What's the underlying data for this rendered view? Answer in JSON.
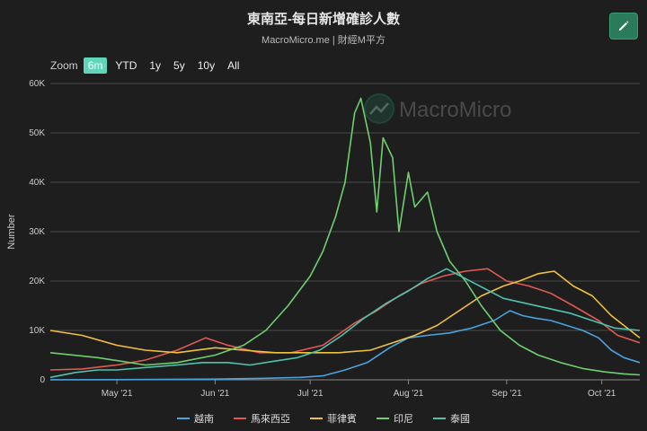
{
  "header": {
    "title": "東南亞-每日新增確診人數",
    "subtitle": "MacroMicro.me | 財經M平方",
    "watermark": "MacroMicro"
  },
  "zoom": {
    "label": "Zoom",
    "buttons": [
      "6m",
      "YTD",
      "1y",
      "5y",
      "10y",
      "All"
    ],
    "active": "6m"
  },
  "chart_data": {
    "type": "line",
    "ylabel": "Number",
    "ylim": [
      0,
      60000
    ],
    "yticks": [
      "0",
      "10K",
      "20K",
      "30K",
      "40K",
      "50K",
      "60K"
    ],
    "xlim": [
      "2021-04-10",
      "2021-10-13"
    ],
    "xticks": [
      {
        "label": "May '21",
        "date": "2021-05-01"
      },
      {
        "label": "Jun '21",
        "date": "2021-06-01"
      },
      {
        "label": "Jul '21",
        "date": "2021-07-01"
      },
      {
        "label": "Aug '21",
        "date": "2021-08-01"
      },
      {
        "label": "Sep '21",
        "date": "2021-09-01"
      },
      {
        "label": "Oct '21",
        "date": "2021-10-01"
      }
    ],
    "grid": true,
    "legend_position": "bottom",
    "series": [
      {
        "name": "越南",
        "color": "#4aa3df",
        "points": [
          [
            "2021-04-10",
            20
          ],
          [
            "2021-05-01",
            30
          ],
          [
            "2021-05-20",
            100
          ],
          [
            "2021-06-01",
            150
          ],
          [
            "2021-06-15",
            300
          ],
          [
            "2021-06-28",
            500
          ],
          [
            "2021-07-05",
            800
          ],
          [
            "2021-07-12",
            2000
          ],
          [
            "2021-07-19",
            3500
          ],
          [
            "2021-07-26",
            6500
          ],
          [
            "2021-08-01",
            8500
          ],
          [
            "2021-08-07",
            9000
          ],
          [
            "2021-08-14",
            9500
          ],
          [
            "2021-08-21",
            10500
          ],
          [
            "2021-08-28",
            12000
          ],
          [
            "2021-09-02",
            14000
          ],
          [
            "2021-09-06",
            13000
          ],
          [
            "2021-09-10",
            12500
          ],
          [
            "2021-09-15",
            12000
          ],
          [
            "2021-09-20",
            11000
          ],
          [
            "2021-09-25",
            10000
          ],
          [
            "2021-09-30",
            8500
          ],
          [
            "2021-10-04",
            6000
          ],
          [
            "2021-10-08",
            4500
          ],
          [
            "2021-10-13",
            3500
          ]
        ]
      },
      {
        "name": "馬來西亞",
        "color": "#e05a50",
        "points": [
          [
            "2021-04-10",
            2000
          ],
          [
            "2021-04-20",
            2200
          ],
          [
            "2021-05-01",
            3000
          ],
          [
            "2021-05-10",
            4000
          ],
          [
            "2021-05-20",
            6000
          ],
          [
            "2021-05-29",
            8500
          ],
          [
            "2021-06-05",
            7000
          ],
          [
            "2021-06-15",
            5500
          ],
          [
            "2021-06-25",
            5500
          ],
          [
            "2021-07-05",
            7000
          ],
          [
            "2021-07-15",
            11500
          ],
          [
            "2021-07-22",
            14000
          ],
          [
            "2021-07-29",
            17000
          ],
          [
            "2021-08-05",
            19500
          ],
          [
            "2021-08-12",
            21000
          ],
          [
            "2021-08-19",
            22000
          ],
          [
            "2021-08-26",
            22500
          ],
          [
            "2021-09-01",
            20000
          ],
          [
            "2021-09-08",
            19000
          ],
          [
            "2021-09-15",
            17500
          ],
          [
            "2021-09-22",
            15000
          ],
          [
            "2021-09-30",
            12000
          ],
          [
            "2021-10-06",
            9000
          ],
          [
            "2021-10-13",
            7500
          ]
        ]
      },
      {
        "name": "菲律賓",
        "color": "#f0c040",
        "points": [
          [
            "2021-04-10",
            10000
          ],
          [
            "2021-04-20",
            9000
          ],
          [
            "2021-05-01",
            7000
          ],
          [
            "2021-05-10",
            6000
          ],
          [
            "2021-05-20",
            5500
          ],
          [
            "2021-06-01",
            6500
          ],
          [
            "2021-06-10",
            6000
          ],
          [
            "2021-06-20",
            5500
          ],
          [
            "2021-07-01",
            5500
          ],
          [
            "2021-07-10",
            5500
          ],
          [
            "2021-07-20",
            6000
          ],
          [
            "2021-07-27",
            7500
          ],
          [
            "2021-08-03",
            9000
          ],
          [
            "2021-08-10",
            11000
          ],
          [
            "2021-08-17",
            14000
          ],
          [
            "2021-08-24",
            17000
          ],
          [
            "2021-08-31",
            19000
          ],
          [
            "2021-09-05",
            20000
          ],
          [
            "2021-09-11",
            21500
          ],
          [
            "2021-09-16",
            22000
          ],
          [
            "2021-09-22",
            19000
          ],
          [
            "2021-09-28",
            17000
          ],
          [
            "2021-10-04",
            13000
          ],
          [
            "2021-10-08",
            11000
          ],
          [
            "2021-10-13",
            8500
          ]
        ]
      },
      {
        "name": "印尼",
        "color": "#6fcf6f",
        "points": [
          [
            "2021-04-10",
            5500
          ],
          [
            "2021-04-25",
            4500
          ],
          [
            "2021-05-10",
            3000
          ],
          [
            "2021-05-20",
            3500
          ],
          [
            "2021-06-01",
            5000
          ],
          [
            "2021-06-10",
            7000
          ],
          [
            "2021-06-17",
            10000
          ],
          [
            "2021-06-24",
            15000
          ],
          [
            "2021-07-01",
            21000
          ],
          [
            "2021-07-05",
            26000
          ],
          [
            "2021-07-09",
            33000
          ],
          [
            "2021-07-12",
            40000
          ],
          [
            "2021-07-15",
            54000
          ],
          [
            "2021-07-17",
            57000
          ],
          [
            "2021-07-20",
            48000
          ],
          [
            "2021-07-22",
            34000
          ],
          [
            "2021-07-24",
            49000
          ],
          [
            "2021-07-27",
            45000
          ],
          [
            "2021-07-29",
            30000
          ],
          [
            "2021-08-01",
            42000
          ],
          [
            "2021-08-03",
            35000
          ],
          [
            "2021-08-07",
            38000
          ],
          [
            "2021-08-10",
            30000
          ],
          [
            "2021-08-14",
            24000
          ],
          [
            "2021-08-19",
            20000
          ],
          [
            "2021-08-24",
            15000
          ],
          [
            "2021-08-30",
            10000
          ],
          [
            "2021-09-05",
            7000
          ],
          [
            "2021-09-11",
            5000
          ],
          [
            "2021-09-18",
            3500
          ],
          [
            "2021-09-25",
            2300
          ],
          [
            "2021-10-02",
            1600
          ],
          [
            "2021-10-08",
            1200
          ],
          [
            "2021-10-13",
            1000
          ]
        ]
      },
      {
        "name": "泰國",
        "color": "#4fc3b0",
        "points": [
          [
            "2021-04-10",
            500
          ],
          [
            "2021-04-18",
            1500
          ],
          [
            "2021-04-25",
            2000
          ],
          [
            "2021-05-01",
            2000
          ],
          [
            "2021-05-10",
            2500
          ],
          [
            "2021-05-20",
            3000
          ],
          [
            "2021-05-28",
            3500
          ],
          [
            "2021-06-05",
            3500
          ],
          [
            "2021-06-12",
            3000
          ],
          [
            "2021-06-20",
            3800
          ],
          [
            "2021-06-27",
            4500
          ],
          [
            "2021-07-04",
            6000
          ],
          [
            "2021-07-11",
            9000
          ],
          [
            "2021-07-18",
            12500
          ],
          [
            "2021-07-25",
            15500
          ],
          [
            "2021-08-01",
            18000
          ],
          [
            "2021-08-07",
            20500
          ],
          [
            "2021-08-13",
            22500
          ],
          [
            "2021-08-19",
            20500
          ],
          [
            "2021-08-25",
            18500
          ],
          [
            "2021-08-31",
            16500
          ],
          [
            "2021-09-07",
            15500
          ],
          [
            "2021-09-14",
            14500
          ],
          [
            "2021-09-21",
            13500
          ],
          [
            "2021-09-28",
            12000
          ],
          [
            "2021-10-05",
            10500
          ],
          [
            "2021-10-13",
            10000
          ]
        ]
      }
    ]
  }
}
